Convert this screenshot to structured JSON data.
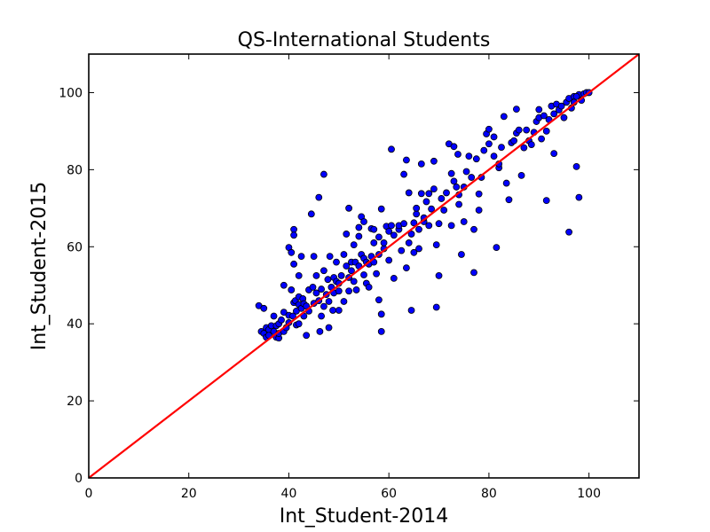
{
  "chart_data": {
    "type": "scatter",
    "title": "QS-International Students",
    "xlabel": "Int_Student-2014",
    "ylabel": "Int_Student-2015",
    "xlim": [
      0,
      110
    ],
    "ylim": [
      0,
      110
    ],
    "xticks": [
      "0",
      "20",
      "40",
      "60",
      "80",
      "100"
    ],
    "yticks": [
      "0",
      "20",
      "40",
      "60",
      "80",
      "100"
    ],
    "grid": false,
    "point_color": "#0000ff",
    "point_edge_color": "#000000",
    "reference_line": {
      "x": [
        0,
        110
      ],
      "y": [
        0,
        110
      ],
      "color": "#ff0000"
    },
    "series": [
      {
        "points": [
          [
            34,
            44.7
          ],
          [
            34.5,
            38
          ],
          [
            35,
            37.5
          ],
          [
            35,
            44
          ],
          [
            35.5,
            36.5
          ],
          [
            35.5,
            39
          ],
          [
            36,
            38.5
          ],
          [
            36,
            37
          ],
          [
            36.5,
            39.5
          ],
          [
            37,
            38
          ],
          [
            37,
            42
          ],
          [
            37.5,
            36.5
          ],
          [
            37.5,
            39.5
          ],
          [
            38,
            36.3
          ],
          [
            38,
            37.5
          ],
          [
            38,
            40
          ],
          [
            38.5,
            41
          ],
          [
            39,
            38
          ],
          [
            39,
            43
          ],
          [
            39,
            50
          ],
          [
            39.5,
            39
          ],
          [
            40,
            40.3
          ],
          [
            40,
            42.2
          ],
          [
            40,
            59.8
          ],
          [
            40.5,
            58.5
          ],
          [
            40.5,
            48.8
          ],
          [
            40.8,
            42
          ],
          [
            41,
            45.5
          ],
          [
            41,
            55.5
          ],
          [
            41,
            64.5
          ],
          [
            41,
            63
          ],
          [
            41.3,
            46
          ],
          [
            41.5,
            43.3
          ],
          [
            41.5,
            39.7
          ],
          [
            42,
            40
          ],
          [
            42,
            45
          ],
          [
            42,
            47
          ],
          [
            42,
            52.5
          ],
          [
            42.5,
            44
          ],
          [
            42.5,
            57.5
          ],
          [
            42.8,
            46.5
          ],
          [
            43,
            45.2
          ],
          [
            43,
            42
          ],
          [
            43.5,
            44.6
          ],
          [
            43.5,
            37
          ],
          [
            44,
            48.8
          ],
          [
            44,
            43.3
          ],
          [
            44.5,
            68.5
          ],
          [
            44.8,
            49.5
          ],
          [
            45,
            45.3
          ],
          [
            45,
            57.5
          ],
          [
            45.5,
            52.5
          ],
          [
            45.5,
            48
          ],
          [
            46,
            46
          ],
          [
            46,
            72.8
          ],
          [
            46.2,
            38
          ],
          [
            46.5,
            42
          ],
          [
            46.5,
            49
          ],
          [
            47,
            53.8
          ],
          [
            47,
            78.8
          ],
          [
            47,
            44.5
          ],
          [
            47.5,
            47.6
          ],
          [
            47.8,
            51.5
          ],
          [
            48,
            45.8
          ],
          [
            48,
            39
          ],
          [
            48.2,
            57.5
          ],
          [
            48.5,
            49.5
          ],
          [
            48.8,
            43.5
          ],
          [
            49,
            52
          ],
          [
            49,
            48
          ],
          [
            49.5,
            51
          ],
          [
            49.5,
            56
          ],
          [
            50,
            50.5
          ],
          [
            50,
            43.5
          ],
          [
            50,
            48.5
          ],
          [
            50.5,
            52.5
          ],
          [
            51,
            45.8
          ],
          [
            51,
            58
          ],
          [
            51.5,
            63.3
          ],
          [
            51.5,
            55
          ],
          [
            52,
            70
          ],
          [
            52,
            48.5
          ],
          [
            52,
            52
          ],
          [
            52.5,
            56
          ],
          [
            52.5,
            53.8
          ],
          [
            53,
            51
          ],
          [
            53,
            60.5
          ],
          [
            53.3,
            56
          ],
          [
            53.5,
            48.8
          ],
          [
            54,
            62.7
          ],
          [
            54,
            65
          ],
          [
            54,
            55
          ],
          [
            54.5,
            67.8
          ],
          [
            54.5,
            58
          ],
          [
            55,
            52.7
          ],
          [
            55,
            66.5
          ],
          [
            55,
            57
          ],
          [
            55.5,
            56
          ],
          [
            55.5,
            50.5
          ],
          [
            56,
            55.5
          ],
          [
            56,
            49.5
          ],
          [
            56.5,
            64.7
          ],
          [
            56.5,
            57.5
          ],
          [
            57,
            56
          ],
          [
            57,
            61
          ],
          [
            57,
            64.5
          ],
          [
            57.5,
            53
          ],
          [
            58,
            62.5
          ],
          [
            58,
            58
          ],
          [
            58,
            46.2
          ],
          [
            58.5,
            69.8
          ],
          [
            58.5,
            42.5
          ],
          [
            58.5,
            38
          ],
          [
            59,
            59.5
          ],
          [
            59,
            61
          ],
          [
            59.5,
            65.3
          ],
          [
            60,
            56.5
          ],
          [
            60,
            64
          ],
          [
            60.5,
            85.3
          ],
          [
            60.5,
            65.5
          ],
          [
            61,
            63
          ],
          [
            61,
            51.8
          ],
          [
            62,
            64.5
          ],
          [
            62,
            65.5
          ],
          [
            62.5,
            59
          ],
          [
            63,
            78.8
          ],
          [
            63,
            66
          ],
          [
            63.5,
            54.5
          ],
          [
            63.5,
            82.5
          ],
          [
            64,
            61
          ],
          [
            64,
            74
          ],
          [
            64.5,
            43.5
          ],
          [
            64.5,
            63.3
          ],
          [
            65,
            58.5
          ],
          [
            65,
            66.2
          ],
          [
            65.5,
            68.5
          ],
          [
            65.5,
            70
          ],
          [
            66,
            64.5
          ],
          [
            66,
            59.5
          ],
          [
            66.5,
            73.8
          ],
          [
            66.5,
            81.5
          ],
          [
            67,
            66.5
          ],
          [
            67,
            67.5
          ],
          [
            67.5,
            71.7
          ],
          [
            68,
            65.5
          ],
          [
            68,
            73.8
          ],
          [
            68.5,
            69.8
          ],
          [
            69,
            82.2
          ],
          [
            69,
            75
          ],
          [
            69.5,
            60.5
          ],
          [
            69.5,
            44.3
          ],
          [
            70,
            52.5
          ],
          [
            70,
            66
          ],
          [
            70.5,
            72.5
          ],
          [
            71,
            69.5
          ],
          [
            71.5,
            74
          ],
          [
            72,
            86.7
          ],
          [
            72.5,
            79
          ],
          [
            72.5,
            65.5
          ],
          [
            73,
            77
          ],
          [
            73,
            86
          ],
          [
            73.5,
            75.5
          ],
          [
            73.8,
            84
          ],
          [
            74,
            71
          ],
          [
            74,
            73.5
          ],
          [
            74.5,
            58
          ],
          [
            75,
            75.5
          ],
          [
            75,
            66.5
          ],
          [
            75.5,
            79.5
          ],
          [
            76,
            83.5
          ],
          [
            76.5,
            78
          ],
          [
            77,
            53.3
          ],
          [
            77,
            64.5
          ],
          [
            77.5,
            82.8
          ],
          [
            78,
            69.5
          ],
          [
            78,
            73.7
          ],
          [
            78.5,
            78
          ],
          [
            79,
            85
          ],
          [
            79.5,
            89.3
          ],
          [
            80,
            86.7
          ],
          [
            80,
            90.5
          ],
          [
            81,
            83.5
          ],
          [
            81,
            88.5
          ],
          [
            81.5,
            59.8
          ],
          [
            82,
            80.5
          ],
          [
            82,
            81.5
          ],
          [
            82.5,
            85.8
          ],
          [
            83,
            93.8
          ],
          [
            83.5,
            76.5
          ],
          [
            84,
            72.2
          ],
          [
            84.5,
            87
          ],
          [
            85,
            87.5
          ],
          [
            85.5,
            95.7
          ],
          [
            85.5,
            89.5
          ],
          [
            86,
            90.3
          ],
          [
            86.5,
            78.5
          ],
          [
            87,
            85.7
          ],
          [
            87.5,
            90.3
          ],
          [
            88,
            87.5
          ],
          [
            88.5,
            86.5
          ],
          [
            89,
            89.7
          ],
          [
            89.5,
            92.5
          ],
          [
            90,
            95.6
          ],
          [
            90,
            93.5
          ],
          [
            90.5,
            88
          ],
          [
            91,
            94
          ],
          [
            91.5,
            72
          ],
          [
            91.5,
            90
          ],
          [
            92,
            93
          ],
          [
            92.5,
            96.5
          ],
          [
            93,
            94.5
          ],
          [
            93,
            84.2
          ],
          [
            93.5,
            97
          ],
          [
            94,
            95.5
          ],
          [
            94.5,
            96.5
          ],
          [
            95,
            93.5
          ],
          [
            95.5,
            97.5
          ],
          [
            96,
            63.8
          ],
          [
            96,
            98.5
          ],
          [
            96.5,
            96
          ],
          [
            97,
            99
          ],
          [
            97,
            97.5
          ],
          [
            97.5,
            80.8
          ],
          [
            98,
            72.8
          ],
          [
            98,
            99.5
          ],
          [
            98.5,
            98
          ],
          [
            99,
            99.7
          ],
          [
            99.5,
            100
          ],
          [
            100,
            100
          ],
          [
            97.5,
            99
          ]
        ]
      }
    ]
  }
}
